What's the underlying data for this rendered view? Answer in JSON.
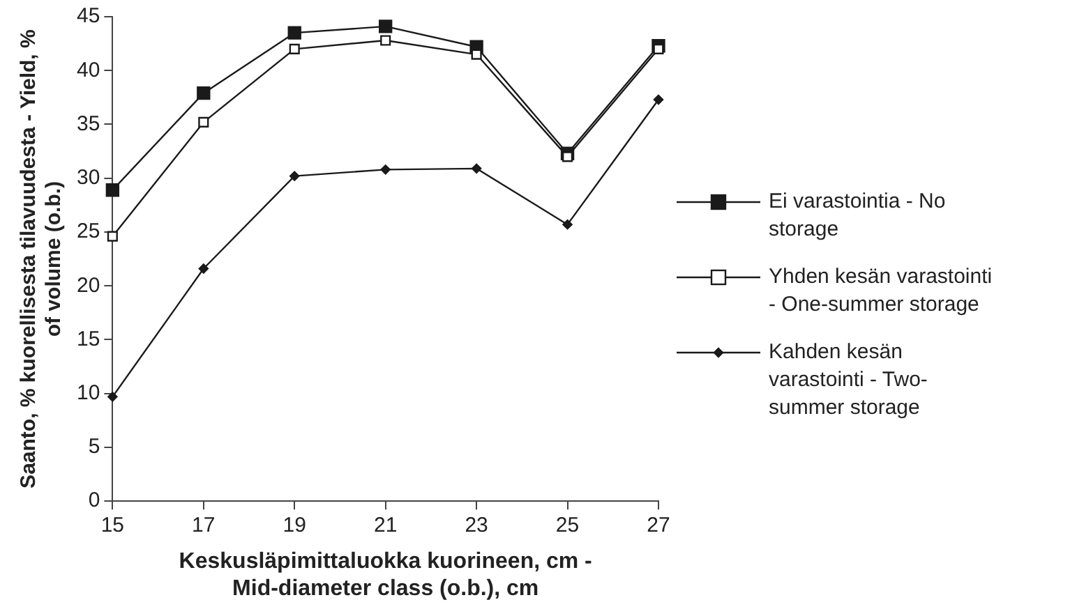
{
  "chart_data": {
    "type": "line",
    "xlabel": "Keskusläpimittaluokka kuorineen, cm - Mid-diameter class (o.b.), cm",
    "ylabel": "Saanto, % kuorellisesta tilavuudesta - Yield, % of volume (o.b.)",
    "categories": [
      "15",
      "17",
      "19",
      "21",
      "23",
      "25",
      "27"
    ],
    "series": [
      {
        "name": "Ei varastointia - No storage",
        "color": "#1a1a1a",
        "marker": "square",
        "values": [
          28.9,
          37.9,
          43.5,
          44.1,
          42.2,
          32.3,
          42.3
        ]
      },
      {
        "name": "Yhden kesän varastointi - One-summer storage",
        "color": "#1a1a1a",
        "marker": "square",
        "values": [
          24.6,
          35.2,
          42.0,
          42.8,
          41.5,
          32.0,
          42.0
        ]
      },
      {
        "name": "Kahden kesän varastointi - Two-summer storage",
        "color": "#1a1a1a",
        "marker": "diamond",
        "values": [
          9.7,
          21.6,
          30.2,
          30.8,
          30.9,
          25.7,
          37.3
        ]
      }
    ],
    "ylim": [
      0,
      45
    ],
    "yticks": [
      0,
      5,
      10,
      15,
      20,
      25,
      30,
      35,
      40,
      45
    ],
    "grid": false,
    "legend": "right",
    "line_style": "solid"
  }
}
